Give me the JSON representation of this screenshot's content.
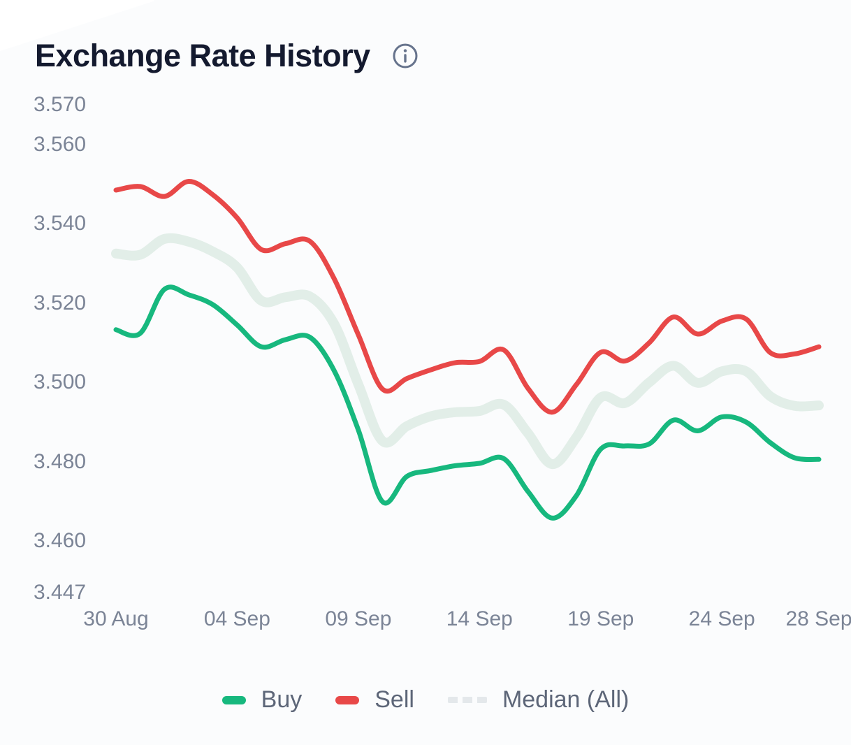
{
  "header": {
    "title": "Exchange Rate History",
    "info_icon": "info-icon"
  },
  "colors": {
    "buy": "#17b87e",
    "sell": "#e84848",
    "median_band": "#e2eee8",
    "median_legend": "#e4e8eb",
    "title_text": "#141a2f",
    "axis_text": "#7b8496",
    "legend_text": "#5d6678",
    "background": "#fbfcfd"
  },
  "chart_data": {
    "type": "line",
    "title": "Exchange Rate History",
    "xlabel": "",
    "ylabel": "",
    "grid": false,
    "legend_position": "bottom",
    "ylim": [
      3.447,
      3.57
    ],
    "y_ticks": [
      3.57,
      3.56,
      3.54,
      3.52,
      3.5,
      3.48,
      3.46,
      3.447
    ],
    "y_tick_labels": [
      "3.570",
      "3.560",
      "3.540",
      "3.520",
      "3.500",
      "3.480",
      "3.460",
      "3.447"
    ],
    "x_tick_labels": [
      "30 Aug",
      "04 Sep",
      "09 Sep",
      "14 Sep",
      "19 Sep",
      "24 Sep",
      "28 Sep"
    ],
    "x_tick_indices": [
      0,
      5,
      10,
      15,
      20,
      25,
      29
    ],
    "x_dates": [
      "30 Aug",
      "31 Aug",
      "01 Sep",
      "02 Sep",
      "03 Sep",
      "04 Sep",
      "05 Sep",
      "06 Sep",
      "07 Sep",
      "08 Sep",
      "09 Sep",
      "10 Sep",
      "11 Sep",
      "12 Sep",
      "13 Sep",
      "14 Sep",
      "15 Sep",
      "16 Sep",
      "17 Sep",
      "18 Sep",
      "19 Sep",
      "20 Sep",
      "21 Sep",
      "22 Sep",
      "23 Sep",
      "24 Sep",
      "25 Sep",
      "26 Sep",
      "27 Sep",
      "28 Sep"
    ],
    "series": [
      {
        "name": "Buy",
        "color": "#17b87e",
        "style": "solid",
        "line_width": 7,
        "z": 3,
        "values": [
          3.5133,
          3.5124,
          3.5235,
          3.5221,
          3.5196,
          3.5145,
          3.509,
          3.5108,
          3.5114,
          3.503,
          3.488,
          3.4699,
          3.4763,
          3.4778,
          3.479,
          3.4796,
          3.4808,
          3.4725,
          3.4658,
          3.4715,
          3.4832,
          3.484,
          3.4845,
          3.4905,
          3.4878,
          3.4913,
          3.49,
          3.4848,
          3.481,
          3.4806
        ]
      },
      {
        "name": "Sell",
        "color": "#e84848",
        "style": "solid",
        "line_width": 7,
        "z": 2,
        "values": [
          3.5485,
          3.5494,
          3.5469,
          3.5507,
          3.5473,
          3.5415,
          3.5335,
          3.535,
          3.5356,
          3.5262,
          3.512,
          3.4983,
          3.501,
          3.5032,
          3.505,
          3.5053,
          3.5082,
          3.4985,
          3.4925,
          3.4995,
          3.5076,
          3.5054,
          3.51,
          3.5165,
          3.5122,
          3.5155,
          3.516,
          3.5075,
          3.5072,
          3.509
        ]
      },
      {
        "name": "Median (All)",
        "color": "#e2eee8",
        "style": "band",
        "line_width": 14,
        "z": 1,
        "values": [
          3.5325,
          3.5322,
          3.5362,
          3.5355,
          3.533,
          3.529,
          3.5206,
          3.5215,
          3.5217,
          3.5148,
          3.4995,
          3.4852,
          3.489,
          3.4915,
          3.4925,
          3.4928,
          3.4944,
          3.4872,
          3.4794,
          3.4862,
          3.4962,
          3.4948,
          3.5,
          3.5042,
          3.4999,
          3.5028,
          3.5028,
          3.4965,
          3.4941,
          3.4942
        ]
      }
    ]
  },
  "legend": {
    "items": [
      {
        "label": "Buy",
        "swatch": "pill",
        "color": "#17b87e"
      },
      {
        "label": "Sell",
        "swatch": "pill",
        "color": "#e84848"
      },
      {
        "label": "Median (All)",
        "swatch": "dashed",
        "color": "#e4e8eb"
      }
    ]
  }
}
